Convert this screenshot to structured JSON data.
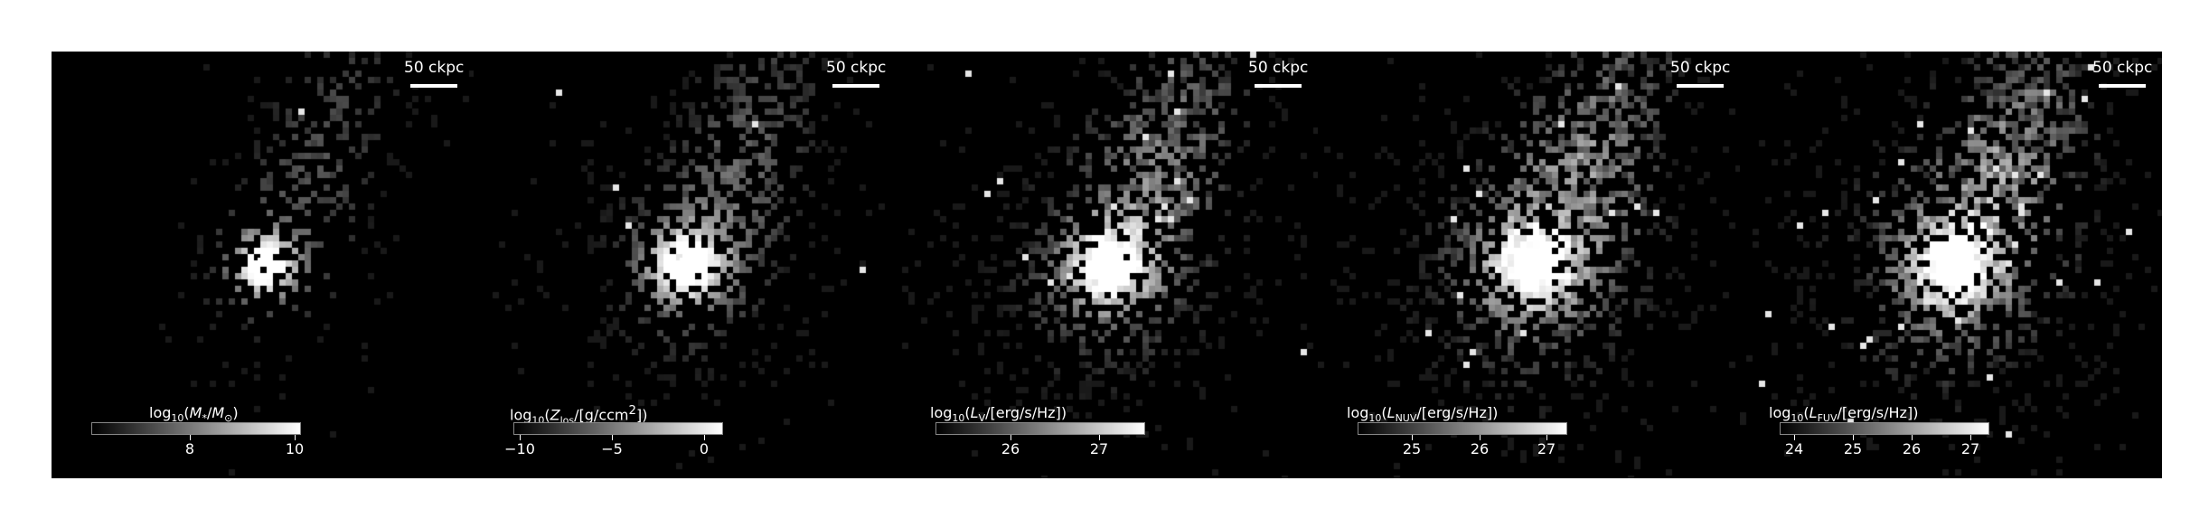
{
  "panels": [
    {
      "scale_label": "50 ckpc",
      "colorbar_label_parts": [
        "log",
        "10",
        "(",
        "M",
        "*",
        "/",
        "M",
        "⊙",
        ")"
      ],
      "ticks": [
        {
          "label": "8",
          "frac": 0.47
        },
        {
          "label": "10",
          "frac": 0.97
        }
      ]
    },
    {
      "scale_label": "50 ckpc",
      "colorbar_label_parts": [
        "log",
        "10",
        "(",
        "Z",
        "los",
        "/[g/ccm",
        "2",
        "])"
      ],
      "ticks": [
        {
          "label": "−10",
          "frac": 0.03
        },
        {
          "label": "−5",
          "frac": 0.47
        },
        {
          "label": "0",
          "frac": 0.91
        }
      ]
    },
    {
      "scale_label": "50 ckpc",
      "colorbar_label_parts": [
        "log",
        "10",
        "(",
        "L",
        "V",
        "/[erg/s/Hz])"
      ],
      "ticks": [
        {
          "label": "26",
          "frac": 0.36
        },
        {
          "label": "27",
          "frac": 0.78
        }
      ]
    },
    {
      "scale_label": "50 ckpc",
      "colorbar_label_parts": [
        "log",
        "10",
        "(",
        "L",
        "NUV",
        "/[erg/s/Hz])"
      ],
      "ticks": [
        {
          "label": "25",
          "frac": 0.26
        },
        {
          "label": "26",
          "frac": 0.58
        },
        {
          "label": "27",
          "frac": 0.9
        }
      ]
    },
    {
      "scale_label": "50 ckpc",
      "colorbar_label_parts": [
        "log",
        "10",
        "(",
        "L",
        "FUV",
        "/[erg/s/Hz])"
      ],
      "ticks": [
        {
          "label": "24",
          "frac": 0.07
        },
        {
          "label": "25",
          "frac": 0.35
        },
        {
          "label": "26",
          "frac": 0.63
        },
        {
          "label": "27",
          "frac": 0.91
        }
      ]
    }
  ]
}
